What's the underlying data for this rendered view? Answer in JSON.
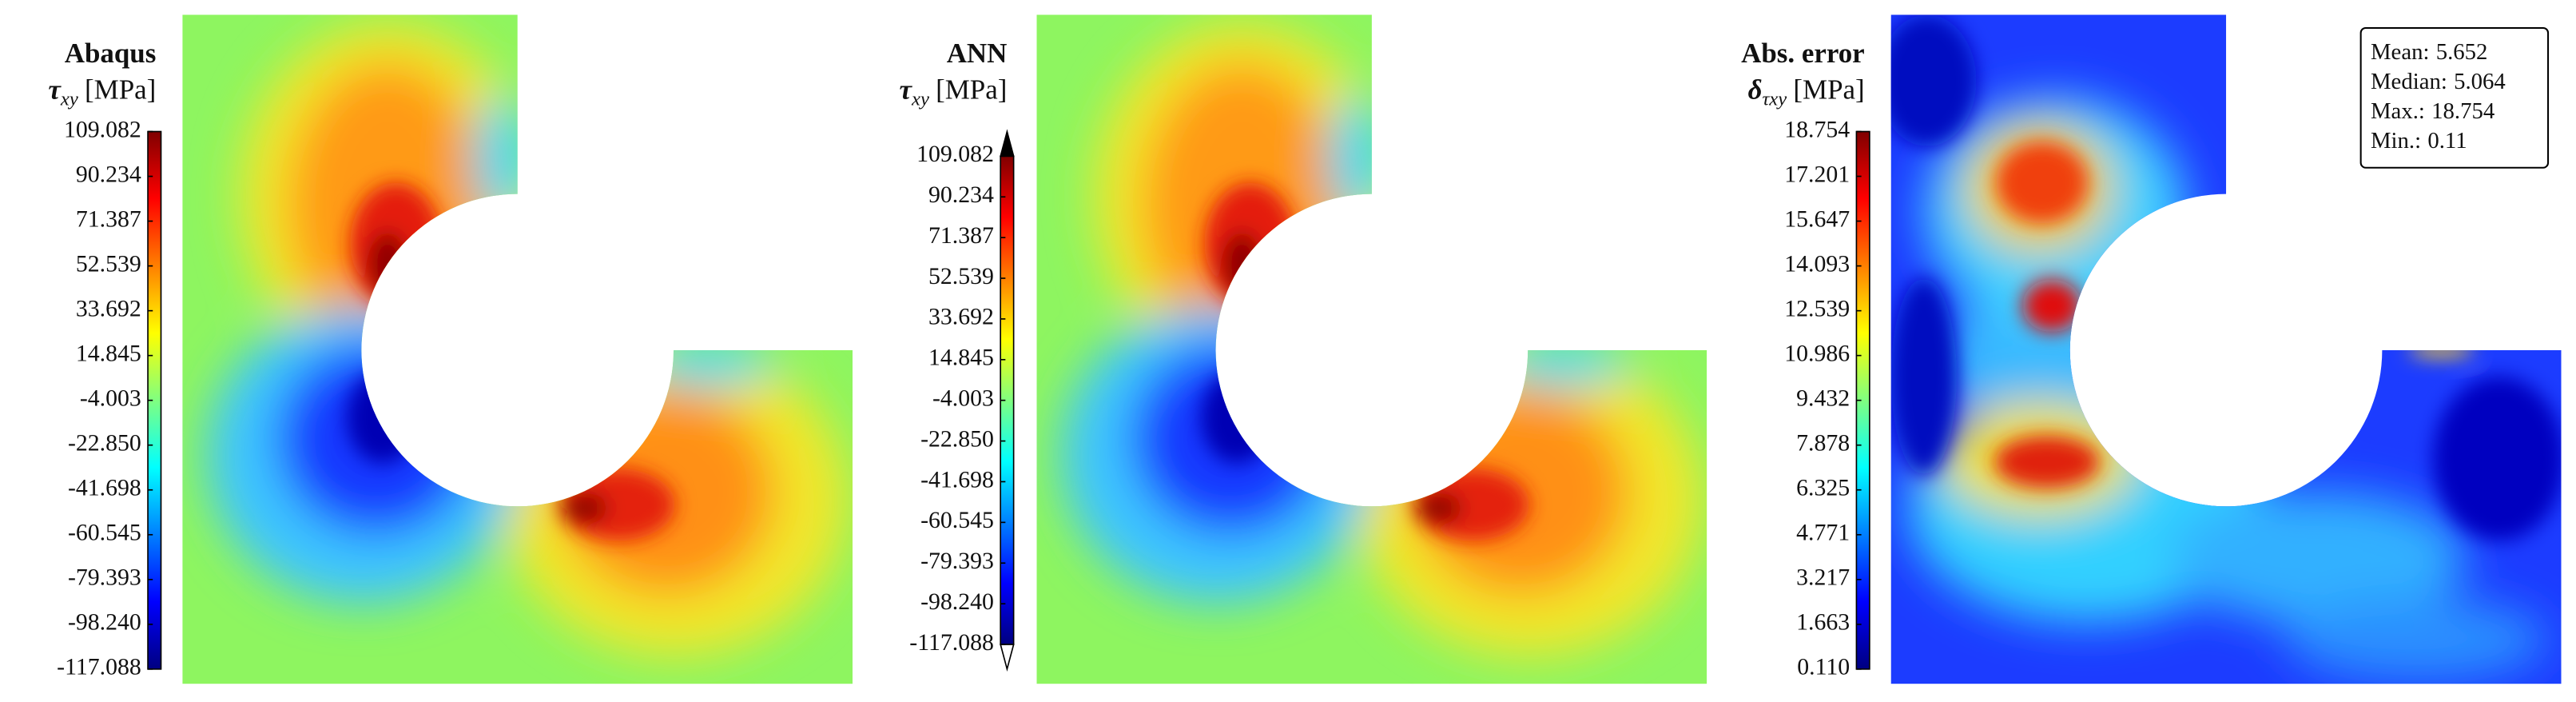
{
  "chart_data": [
    {
      "type": "heatmap",
      "title": "Abaqus",
      "colorbar_label": {
        "symbol": "τ",
        "subscript": "xy",
        "unit": "[MPa]"
      },
      "ylim": [
        -117.088,
        109.082
      ],
      "yticks": [
        109.082,
        90.234,
        71.387,
        52.539,
        33.692,
        14.845,
        -4.003,
        {
          "value": -22.85,
          "label": "-22.850"
        },
        -41.698,
        -60.545,
        -79.393,
        {
          "value": -98.24,
          "label": "-98.240"
        },
        -117.088
      ],
      "colormap": "jet"
    },
    {
      "type": "heatmap",
      "title": "ANN",
      "colorbar_label": {
        "symbol": "τ",
        "subscript": "xy",
        "unit": "[MPa]"
      },
      "ylim": [
        -117.088,
        109.082
      ],
      "yticks": [
        109.082,
        90.234,
        71.387,
        52.539,
        33.692,
        14.845,
        -4.003,
        {
          "value": -22.85,
          "label": "-22.850"
        },
        -41.698,
        -60.545,
        -79.393,
        {
          "value": -98.24,
          "label": "-98.240"
        },
        -117.088
      ],
      "colormap": "jet",
      "extend": "both"
    },
    {
      "type": "heatmap",
      "title": "Abs. error",
      "colorbar_label": {
        "symbol": "δ",
        "subscript": "τxy",
        "unit": "[MPa]"
      },
      "ylim": [
        0.11,
        18.754
      ],
      "yticks": [
        18.754,
        17.201,
        15.647,
        14.093,
        12.539,
        10.986,
        9.432,
        7.878,
        6.325,
        4.771,
        3.217,
        1.663,
        {
          "value": 0.11,
          "label": "0.110"
        }
      ],
      "colormap": "jet",
      "stats": [
        {
          "label": "Mean:",
          "value": 5.652
        },
        {
          "label": "Median:",
          "value": 5.064
        },
        {
          "label": "Max.:",
          "value": 18.754
        },
        {
          "label": "Min.:",
          "value": 0.11
        }
      ]
    }
  ]
}
